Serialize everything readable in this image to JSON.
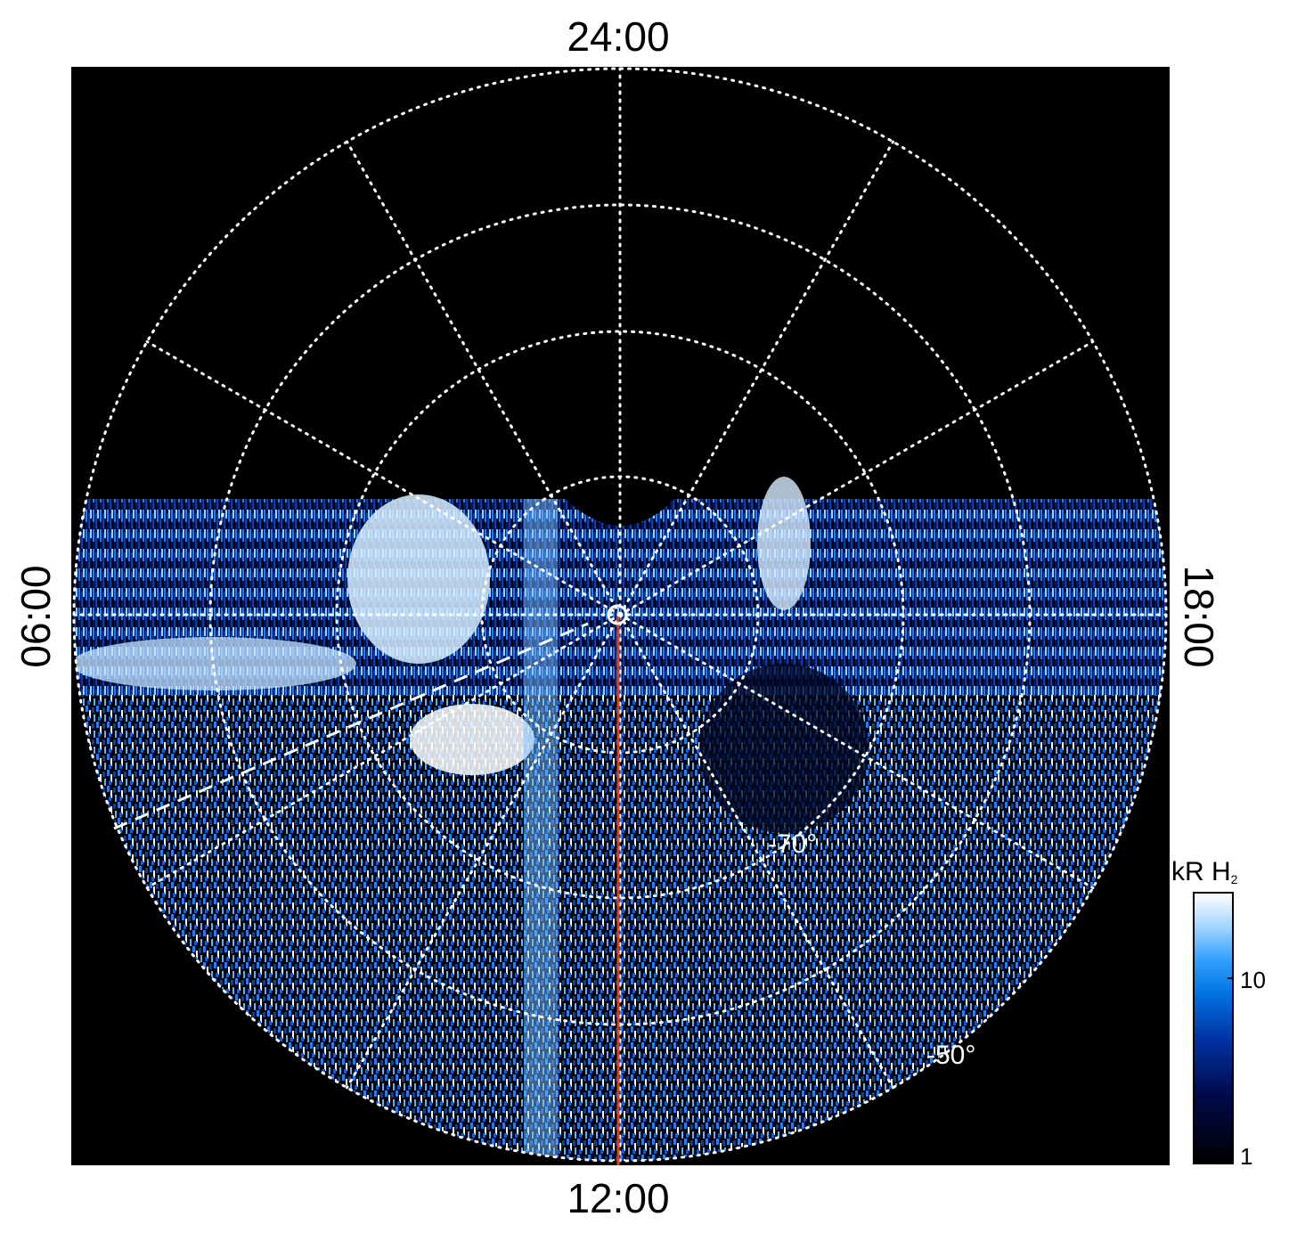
{
  "figure": {
    "local_time_labels": {
      "top": "24:00",
      "bottom": "12:00",
      "left": "06:00",
      "right": "18:00"
    },
    "latitude_labels": [
      "-70°",
      "-50°"
    ],
    "colorbar": {
      "title_main": "kR H",
      "title_sub": "2",
      "ticks": [
        "10",
        "1"
      ],
      "colors": [
        "#000000",
        "#000a4a",
        "#0030a0",
        "#0070e0",
        "#30a0ff",
        "#a8d8ff",
        "#ffffff"
      ]
    },
    "colors": {
      "background": "#000000",
      "grid": "#ffffff",
      "meridian_line": "#e0401a",
      "emission_blue": "#1e7fff"
    }
  }
}
